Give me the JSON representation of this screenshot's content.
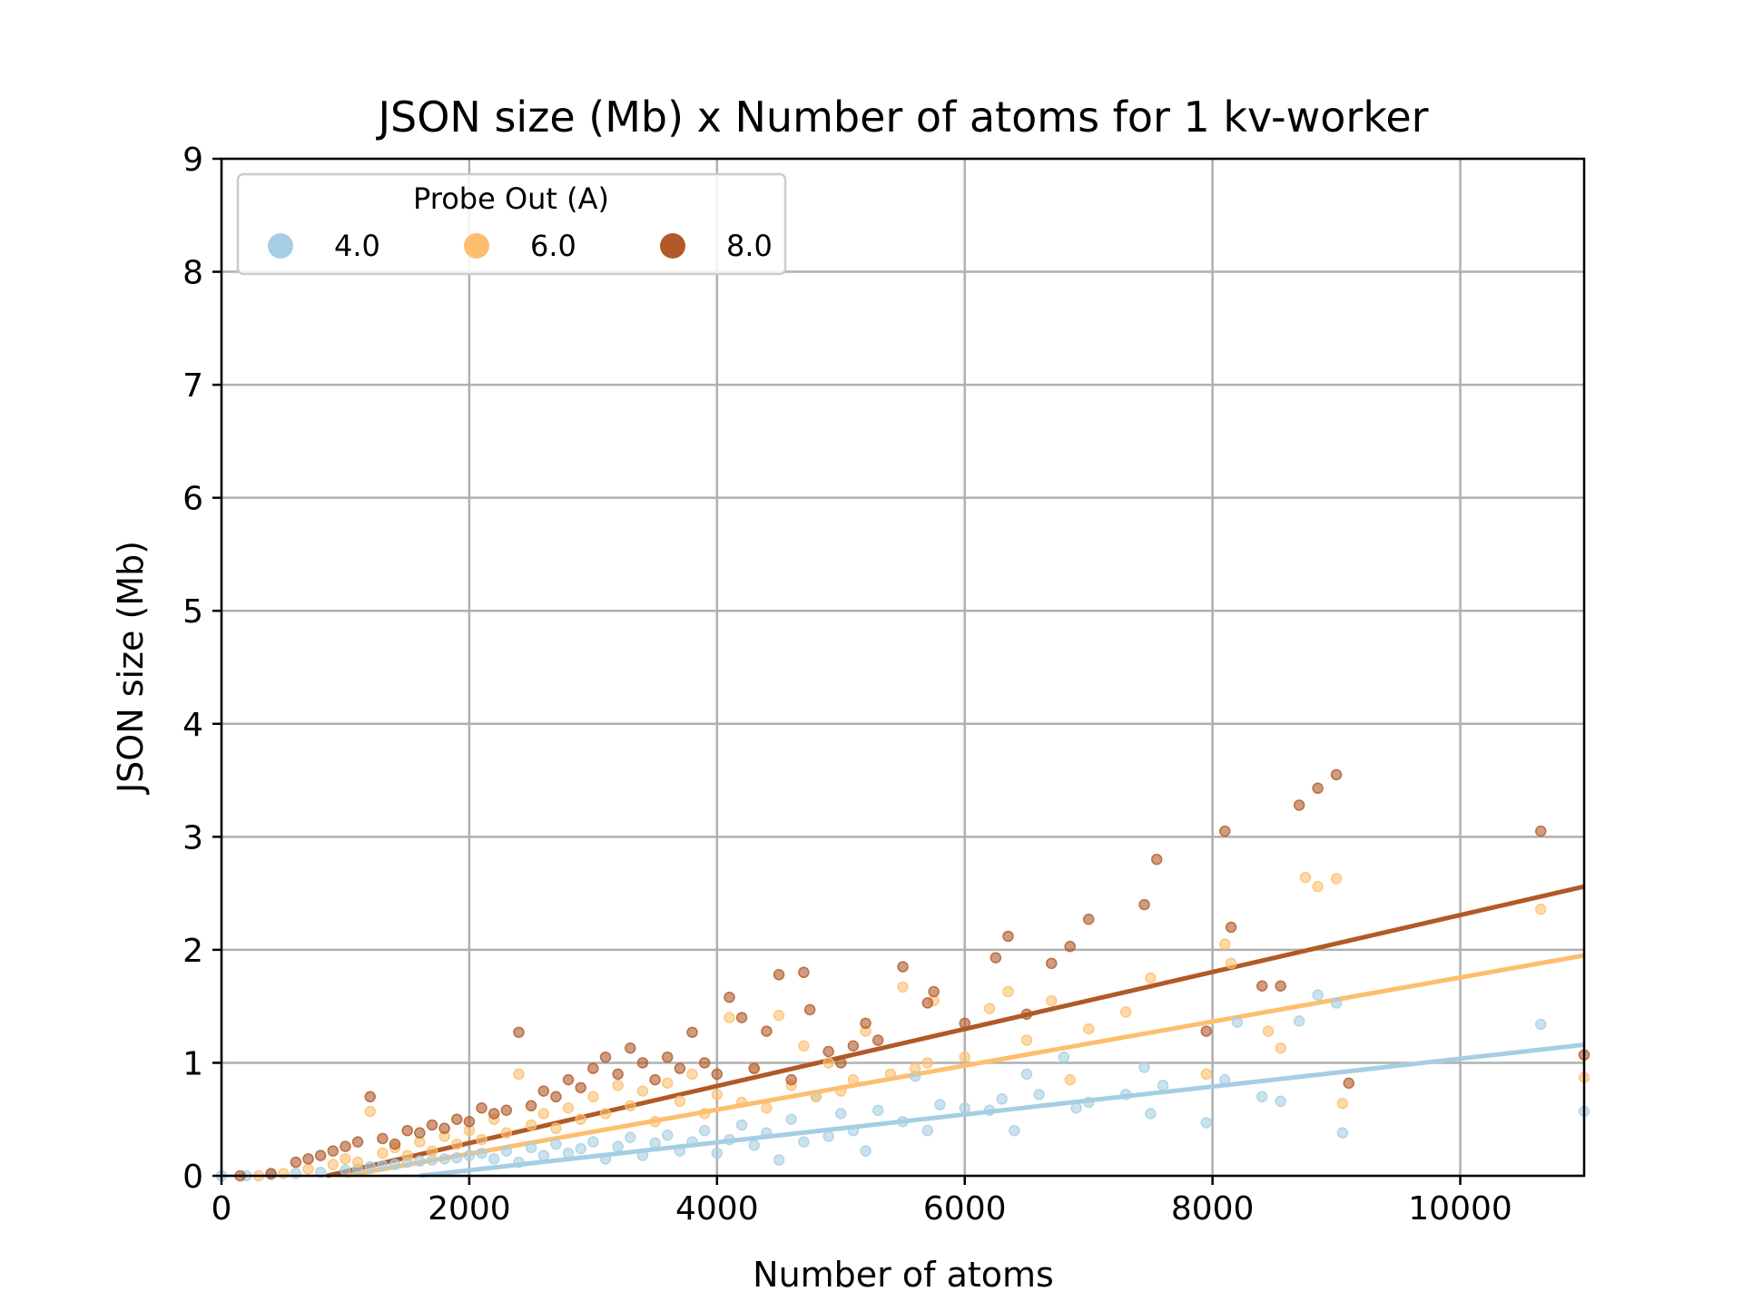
{
  "chart_data": {
    "type": "scatter",
    "title": "JSON size (Mb) x Number of atoms for 1 kv-worker",
    "xlabel": "Number of atoms",
    "ylabel": "JSON size (Mb)",
    "xlim": [
      0,
      11000
    ],
    "ylim": [
      0,
      9
    ],
    "xticks": [
      0,
      2000,
      4000,
      6000,
      8000,
      10000
    ],
    "yticks": [
      0,
      1,
      2,
      3,
      4,
      5,
      6,
      7,
      8,
      9
    ],
    "grid": true,
    "legend": {
      "title": "Probe Out (A)",
      "placement": "top-left",
      "ncol": 3
    },
    "series": [
      {
        "name": "4.0",
        "color": "#a6cee3",
        "trend": {
          "x": [
            1600,
            11000
          ],
          "y": [
            0.0,
            1.16
          ]
        },
        "points": [
          [
            0,
            0.0
          ],
          [
            200,
            0.0
          ],
          [
            400,
            0.01
          ],
          [
            600,
            0.02
          ],
          [
            800,
            0.03
          ],
          [
            1000,
            0.05
          ],
          [
            1100,
            0.06
          ],
          [
            1200,
            0.08
          ],
          [
            1300,
            0.09
          ],
          [
            1400,
            0.1
          ],
          [
            1500,
            0.12
          ],
          [
            1600,
            0.13
          ],
          [
            1700,
            0.14
          ],
          [
            1800,
            0.15
          ],
          [
            1900,
            0.16
          ],
          [
            2000,
            0.18
          ],
          [
            2100,
            0.2
          ],
          [
            2200,
            0.15
          ],
          [
            2300,
            0.22
          ],
          [
            2400,
            0.12
          ],
          [
            2500,
            0.25
          ],
          [
            2600,
            0.18
          ],
          [
            2700,
            0.28
          ],
          [
            2800,
            0.2
          ],
          [
            2900,
            0.24
          ],
          [
            3000,
            0.3
          ],
          [
            3100,
            0.15
          ],
          [
            3200,
            0.26
          ],
          [
            3300,
            0.34
          ],
          [
            3400,
            0.18
          ],
          [
            3500,
            0.29
          ],
          [
            3600,
            0.36
          ],
          [
            3700,
            0.22
          ],
          [
            3800,
            0.3
          ],
          [
            3900,
            0.4
          ],
          [
            4000,
            0.2
          ],
          [
            4100,
            0.32
          ],
          [
            4200,
            0.45
          ],
          [
            4300,
            0.27
          ],
          [
            4400,
            0.38
          ],
          [
            4500,
            0.14
          ],
          [
            4600,
            0.5
          ],
          [
            4700,
            0.3
          ],
          [
            4800,
            0.7
          ],
          [
            4900,
            0.35
          ],
          [
            5000,
            0.55
          ],
          [
            5100,
            0.4
          ],
          [
            5200,
            0.22
          ],
          [
            5300,
            0.58
          ],
          [
            5500,
            0.48
          ],
          [
            5600,
            0.88
          ],
          [
            5700,
            0.4
          ],
          [
            5800,
            0.63
          ],
          [
            6000,
            0.6
          ],
          [
            6200,
            0.58
          ],
          [
            6300,
            0.68
          ],
          [
            6400,
            0.4
          ],
          [
            6500,
            0.9
          ],
          [
            6600,
            0.72
          ],
          [
            6800,
            1.05
          ],
          [
            6900,
            0.6
          ],
          [
            7000,
            0.65
          ],
          [
            7300,
            0.72
          ],
          [
            7450,
            0.96
          ],
          [
            7500,
            0.55
          ],
          [
            7600,
            0.8
          ],
          [
            7950,
            0.47
          ],
          [
            8100,
            0.85
          ],
          [
            8200,
            1.36
          ],
          [
            8400,
            0.7
          ],
          [
            8550,
            0.66
          ],
          [
            8700,
            1.37
          ],
          [
            8850,
            1.6
          ],
          [
            9000,
            1.53
          ],
          [
            9050,
            0.38
          ],
          [
            10650,
            1.34
          ],
          [
            11000,
            0.57
          ]
        ]
      },
      {
        "name": "6.0",
        "color": "#fdbf6f",
        "trend": {
          "x": [
            1000,
            11000
          ],
          "y": [
            0.0,
            1.95
          ]
        },
        "points": [
          [
            300,
            0.0
          ],
          [
            500,
            0.02
          ],
          [
            700,
            0.06
          ],
          [
            900,
            0.1
          ],
          [
            1000,
            0.15
          ],
          [
            1100,
            0.12
          ],
          [
            1200,
            0.57
          ],
          [
            1300,
            0.2
          ],
          [
            1400,
            0.25
          ],
          [
            1500,
            0.18
          ],
          [
            1600,
            0.3
          ],
          [
            1700,
            0.22
          ],
          [
            1800,
            0.35
          ],
          [
            1900,
            0.28
          ],
          [
            2000,
            0.4
          ],
          [
            2100,
            0.32
          ],
          [
            2200,
            0.5
          ],
          [
            2300,
            0.38
          ],
          [
            2400,
            0.9
          ],
          [
            2500,
            0.45
          ],
          [
            2600,
            0.55
          ],
          [
            2700,
            0.42
          ],
          [
            2800,
            0.6
          ],
          [
            2900,
            0.5
          ],
          [
            3000,
            0.7
          ],
          [
            3100,
            0.55
          ],
          [
            3200,
            0.8
          ],
          [
            3300,
            0.62
          ],
          [
            3400,
            0.75
          ],
          [
            3500,
            0.48
          ],
          [
            3600,
            0.82
          ],
          [
            3700,
            0.66
          ],
          [
            3800,
            0.9
          ],
          [
            3900,
            0.55
          ],
          [
            4000,
            0.72
          ],
          [
            4100,
            1.4
          ],
          [
            4200,
            0.65
          ],
          [
            4300,
            0.95
          ],
          [
            4400,
            0.6
          ],
          [
            4500,
            1.42
          ],
          [
            4600,
            0.8
          ],
          [
            4700,
            1.15
          ],
          [
            4800,
            0.7
          ],
          [
            4900,
            1.0
          ],
          [
            5000,
            0.75
          ],
          [
            5100,
            0.85
          ],
          [
            5200,
            1.28
          ],
          [
            5400,
            0.9
          ],
          [
            5500,
            1.67
          ],
          [
            5600,
            0.95
          ],
          [
            5700,
            1.0
          ],
          [
            5750,
            1.55
          ],
          [
            6000,
            1.05
          ],
          [
            6200,
            1.48
          ],
          [
            6350,
            1.63
          ],
          [
            6500,
            1.2
          ],
          [
            6700,
            1.55
          ],
          [
            6850,
            0.85
          ],
          [
            7000,
            1.3
          ],
          [
            7300,
            1.45
          ],
          [
            7500,
            1.75
          ],
          [
            7950,
            0.9
          ],
          [
            8100,
            2.05
          ],
          [
            8150,
            1.88
          ],
          [
            8450,
            1.28
          ],
          [
            8550,
            1.13
          ],
          [
            8750,
            2.64
          ],
          [
            8850,
            2.56
          ],
          [
            9000,
            2.63
          ],
          [
            9050,
            0.64
          ],
          [
            10650,
            2.36
          ],
          [
            11000,
            0.87
          ]
        ]
      },
      {
        "name": "8.0",
        "color": "#b15928",
        "trend": {
          "x": [
            850,
            11000
          ],
          "y": [
            0.0,
            2.56
          ]
        },
        "points": [
          [
            150,
            0.0
          ],
          [
            400,
            0.02
          ],
          [
            600,
            0.12
          ],
          [
            700,
            0.15
          ],
          [
            800,
            0.18
          ],
          [
            900,
            0.22
          ],
          [
            1000,
            0.26
          ],
          [
            1100,
            0.3
          ],
          [
            1200,
            0.7
          ],
          [
            1300,
            0.33
          ],
          [
            1400,
            0.28
          ],
          [
            1500,
            0.4
          ],
          [
            1600,
            0.38
          ],
          [
            1700,
            0.45
          ],
          [
            1800,
            0.42
          ],
          [
            1900,
            0.5
          ],
          [
            2000,
            0.48
          ],
          [
            2100,
            0.6
          ],
          [
            2200,
            0.55
          ],
          [
            2300,
            0.58
          ],
          [
            2400,
            1.27
          ],
          [
            2500,
            0.62
          ],
          [
            2600,
            0.75
          ],
          [
            2700,
            0.7
          ],
          [
            2800,
            0.85
          ],
          [
            2900,
            0.78
          ],
          [
            3000,
            0.95
          ],
          [
            3100,
            1.05
          ],
          [
            3200,
            0.9
          ],
          [
            3300,
            1.13
          ],
          [
            3400,
            1.0
          ],
          [
            3500,
            0.85
          ],
          [
            3600,
            1.05
          ],
          [
            3700,
            0.95
          ],
          [
            3800,
            1.27
          ],
          [
            3900,
            1.0
          ],
          [
            4000,
            0.9
          ],
          [
            4100,
            1.58
          ],
          [
            4200,
            1.4
          ],
          [
            4300,
            0.95
          ],
          [
            4400,
            1.28
          ],
          [
            4500,
            1.78
          ],
          [
            4600,
            0.85
          ],
          [
            4700,
            1.8
          ],
          [
            4750,
            1.47
          ],
          [
            4900,
            1.1
          ],
          [
            5000,
            1.0
          ],
          [
            5100,
            1.15
          ],
          [
            5200,
            1.35
          ],
          [
            5300,
            1.2
          ],
          [
            5500,
            1.85
          ],
          [
            5700,
            1.53
          ],
          [
            5750,
            1.63
          ],
          [
            6000,
            1.35
          ],
          [
            6250,
            1.93
          ],
          [
            6350,
            2.12
          ],
          [
            6500,
            1.43
          ],
          [
            6700,
            1.88
          ],
          [
            6850,
            2.03
          ],
          [
            7000,
            2.27
          ],
          [
            7450,
            2.4
          ],
          [
            7550,
            2.8
          ],
          [
            7950,
            1.28
          ],
          [
            8100,
            3.05
          ],
          [
            8150,
            2.2
          ],
          [
            8400,
            1.68
          ],
          [
            8550,
            1.68
          ],
          [
            8700,
            3.28
          ],
          [
            8850,
            3.43
          ],
          [
            9000,
            3.55
          ],
          [
            9100,
            0.82
          ],
          [
            10650,
            3.05
          ],
          [
            11000,
            1.07
          ]
        ]
      }
    ]
  }
}
